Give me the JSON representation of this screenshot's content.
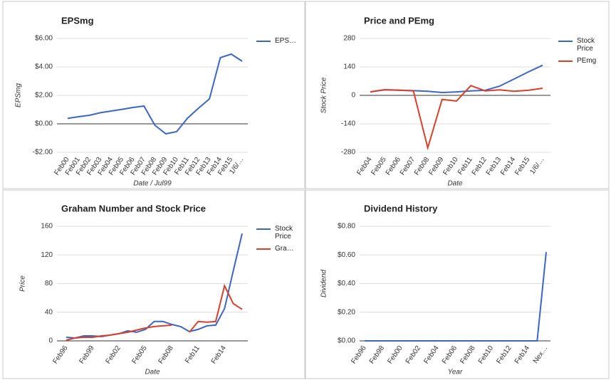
{
  "chart_data": [
    {
      "type": "line",
      "title": "EPSmg",
      "x_label": "Date / Jul99",
      "y_label": "EPSmg",
      "legend": "right",
      "grid": true,
      "categories": [
        "Feb00",
        "Feb01",
        "Feb02",
        "Feb03",
        "Feb04",
        "Feb05",
        "Feb06",
        "Feb07",
        "Feb08",
        "Feb09",
        "Feb10",
        "Feb11",
        "Feb12",
        "Feb13",
        "Feb14",
        "Feb15",
        "1/6/…"
      ],
      "series": [
        {
          "name": "EPS…",
          "color": "#3c66c4",
          "values": [
            0.38,
            0.5,
            0.6,
            0.78,
            0.9,
            1.02,
            1.15,
            1.25,
            -0.1,
            -0.7,
            -0.55,
            0.4,
            1.1,
            1.75,
            4.65,
            4.9,
            4.4
          ]
        }
      ],
      "ylim": [
        -2,
        6
      ],
      "yticks": [
        {
          "value": -2,
          "label": "-$2.00"
        },
        {
          "value": 0,
          "label": "$0.00"
        },
        {
          "value": 2,
          "label": "$2.00"
        },
        {
          "value": 4,
          "label": "$4.00"
        },
        {
          "value": 6,
          "label": "$6.00"
        }
      ]
    },
    {
      "type": "line",
      "title": "Price and PEmg",
      "x_label": "Date",
      "y_label": "Stock Price",
      "legend": "right",
      "grid": true,
      "categories": [
        "Feb04",
        "Feb05",
        "Feb06",
        "Feb07",
        "Feb08",
        "Feb09",
        "Feb10",
        "Feb11",
        "Feb12",
        "Feb13",
        "Feb14",
        "Feb15",
        "1/6/…"
      ],
      "series": [
        {
          "name": "Stock Price",
          "color": "#3c66c4",
          "values": [
            17,
            27,
            25,
            23,
            20,
            14,
            17,
            22,
            25,
            45,
            80,
            115,
            148
          ]
        },
        {
          "name": "PEmg",
          "color": "#d6412b",
          "values": [
            17,
            28,
            26,
            22,
            -258,
            -20,
            -28,
            48,
            22,
            27,
            20,
            25,
            35
          ]
        }
      ],
      "ylim": [
        -280,
        280
      ],
      "yticks": [
        -280,
        -140,
        0,
        140,
        280
      ]
    },
    {
      "type": "line",
      "title": "Graham Number and Stock Price",
      "x_label": "Date",
      "y_label": "Price",
      "legend": "right",
      "grid": true,
      "categories": [
        "Feb96",
        null,
        null,
        "Feb99",
        null,
        null,
        "Feb02",
        null,
        null,
        "Feb05",
        null,
        null,
        "Feb08",
        null,
        null,
        "Feb11",
        null,
        null,
        "Feb14",
        null,
        null
      ],
      "series": [
        {
          "name": "Stock Price",
          "color": "#3c66c4",
          "values": [
            5,
            4,
            7,
            7,
            6,
            8,
            10,
            14,
            12,
            16,
            27,
            27,
            23,
            20,
            13,
            16,
            21,
            22,
            45,
            98,
            150
          ]
        },
        {
          "name": "Gra…",
          "color": "#d6412b",
          "values": [
            1,
            4,
            5,
            5,
            7,
            8,
            10,
            12,
            15,
            18,
            20,
            21,
            22,
            null,
            12,
            27,
            26,
            27,
            77,
            52,
            44
          ]
        }
      ],
      "ylim": [
        0,
        160
      ],
      "yticks": [
        0,
        40,
        80,
        120,
        160
      ]
    },
    {
      "type": "line",
      "title": "Dividend History",
      "x_label": "Year",
      "y_label": "Dividend",
      "grid": true,
      "categories": [
        "Feb96",
        null,
        "Feb98",
        null,
        "Feb00",
        null,
        "Feb02",
        null,
        "Feb04",
        null,
        "Feb06",
        null,
        "Feb08",
        null,
        "Feb10",
        null,
        "Feb12",
        null,
        "Feb14",
        null,
        "Nex…"
      ],
      "series": [
        {
          "color": "#3c66c4",
          "values": [
            0,
            0,
            0,
            0,
            0,
            0,
            0,
            0,
            0,
            0,
            0,
            0,
            0,
            0,
            0,
            0,
            0,
            0,
            0,
            0,
            0.62
          ]
        }
      ],
      "ylim": [
        0,
        0.8
      ],
      "yticks": [
        {
          "value": 0,
          "label": "$0.00"
        },
        {
          "value": 0.2,
          "label": "$0.20"
        },
        {
          "value": 0.4,
          "label": "$0.40"
        },
        {
          "value": 0.6,
          "label": "$0.60"
        },
        {
          "value": 0.8,
          "label": "$0.80"
        }
      ]
    }
  ]
}
